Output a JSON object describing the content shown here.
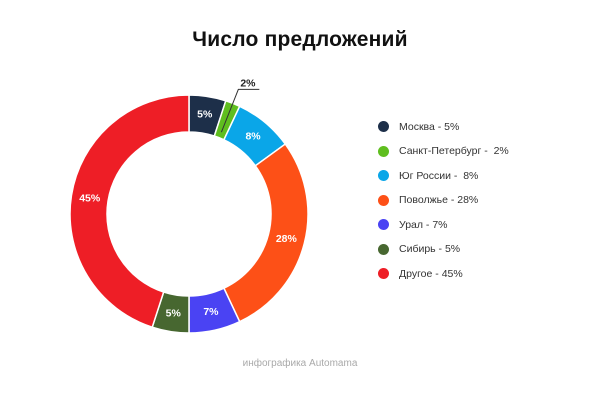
{
  "chart_data": {
    "type": "pie",
    "title": "Число предложений",
    "categories": [
      "Москва",
      "Санкт-Петербург",
      "Юг России",
      "Поволжье",
      "Урал",
      "Сибирь",
      "Другое"
    ],
    "values": [
      5,
      2,
      8,
      28,
      7,
      5,
      45
    ],
    "data_labels": [
      "5%",
      "2%",
      "8%",
      "28%",
      "7%",
      "5%",
      "45%"
    ],
    "legend_labels": [
      "Москва - 5%",
      "Санкт-Петербург -  2%",
      "Юг России -  8%",
      "Поволжье - 28%",
      "Урал - 7%",
      "Сибирь - 5%",
      "Другое - 45%"
    ],
    "colors": [
      "#1d2f49",
      "#5fbe1f",
      "#0aa6e8",
      "#fd5017",
      "#4a43f3",
      "#476730",
      "#ee1e26"
    ],
    "legend_position": "right",
    "hole": true
  },
  "footer": "инфографика Automama"
}
